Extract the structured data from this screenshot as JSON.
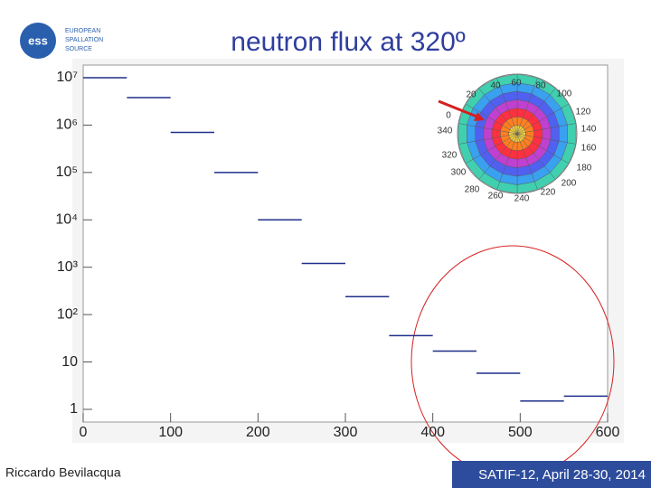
{
  "title": "neutron flux at 320º",
  "logo": [
    "EUROPEAN",
    "SPALLATION",
    "SOURCE"
  ],
  "author": "Riccardo Bevilacqua",
  "event": "SATIF-12, April 28-30, 2014",
  "chart_data": {
    "type": "histogram",
    "bins": [
      0,
      50,
      100,
      150,
      200,
      250,
      300,
      350,
      400,
      450,
      500,
      550,
      600
    ],
    "values": [
      10000000,
      3800000,
      700000,
      100000,
      10000,
      1200,
      240,
      36,
      17,
      5.8,
      1.5,
      1.9
    ],
    "color": "#1f2f8a",
    "xlim": [
      0,
      600
    ],
    "xticks": [
      0,
      100,
      200,
      300,
      400,
      500,
      600
    ],
    "ylim": [
      0.54,
      18500000
    ],
    "yticks": [
      1,
      10,
      {
        "value": 100,
        "label": "10²"
      },
      {
        "value": 1000,
        "label": "10³"
      },
      {
        "value": 10000,
        "label": "10⁴"
      },
      {
        "value": 100000,
        "label": "10⁵"
      },
      {
        "value": 1000000,
        "label": "10⁶"
      },
      {
        "value": 10000000,
        "label": "10⁷"
      }
    ],
    "log_y": true,
    "inset_angle_labels": [
      0,
      20,
      40,
      60,
      80,
      100,
      120,
      140,
      160,
      180,
      200,
      220,
      240,
      260,
      280,
      300,
      320,
      340
    ]
  }
}
